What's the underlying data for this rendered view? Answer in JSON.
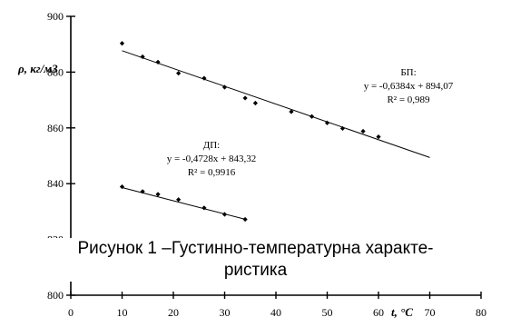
{
  "chart_data": {
    "type": "scatter",
    "title": "",
    "xlabel": "t, °C",
    "ylabel": "ρ, кг/м3",
    "xlim": [
      0,
      80
    ],
    "ylim": [
      800,
      900
    ],
    "x_ticks": [
      "0",
      "10",
      "20",
      "30",
      "40",
      "50",
      "60",
      "70",
      "80"
    ],
    "y_ticks": [
      "800",
      "820",
      "840",
      "860",
      "880",
      "900"
    ],
    "series": [
      {
        "name": "БП:",
        "x": [
          10,
          14,
          17,
          21,
          26,
          30,
          34,
          36,
          43,
          47,
          50,
          53,
          57,
          60
        ],
        "y": [
          890.3,
          885.5,
          883.6,
          879.6,
          877.8,
          874.6,
          870.7,
          868.9,
          865.8,
          864.1,
          861.8,
          859.8,
          858.8,
          856.8
        ],
        "trendline": {
          "slope": -0.6384,
          "intercept": 894.07,
          "x_range": [
            10,
            70
          ]
        },
        "equation": "y = -0,6384x + 894,07",
        "r2": "R² = 0,989"
      },
      {
        "name": "ДП:",
        "x": [
          10,
          14,
          17,
          21,
          26,
          30,
          34
        ],
        "y": [
          838.9,
          837.2,
          836.2,
          834.3,
          831.3,
          829.0,
          827.2
        ],
        "trendline": {
          "slope": -0.4728,
          "intercept": 843.32,
          "x_range": [
            10,
            34
          ]
        },
        "equation": "y = -0,4728x + 843,32",
        "r2": "R² = 0,9916"
      }
    ],
    "grid": false,
    "legend": "none"
  },
  "caption": {
    "line1": "Рисунок 1 –Густинно-температурна характе-",
    "line2": "ристика"
  },
  "colors": {
    "axis": "#000000",
    "marker": "#000000",
    "background": "#ffffff"
  }
}
